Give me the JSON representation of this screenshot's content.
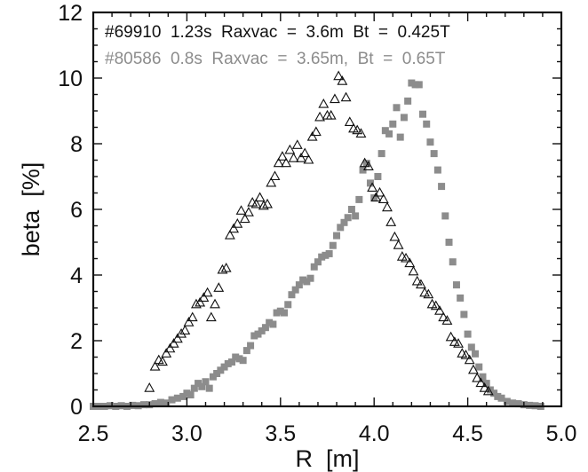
{
  "chart_data": {
    "type": "scatter",
    "xlabel": "R  [m]",
    "ylabel": "beta  [%]",
    "xlim": [
      2.5,
      5.0
    ],
    "ylim": [
      0,
      12
    ],
    "x_ticks": [
      "2.5",
      "3.0",
      "3.5",
      "4.0",
      "4.5",
      "5.0"
    ],
    "y_ticks": [
      "0",
      "2",
      "4",
      "6",
      "8",
      "10",
      "12"
    ],
    "grid": false,
    "legend_position": "top",
    "series": [
      {
        "name": "#69910  1.23s  Raxvac  =  3.6m  Bt  =  0.425T",
        "marker": "open-triangle",
        "color": "#111111",
        "points": [
          [
            2.8,
            0.55
          ],
          [
            2.83,
            1.2
          ],
          [
            2.85,
            1.4
          ],
          [
            2.87,
            1.35
          ],
          [
            2.89,
            1.6
          ],
          [
            2.91,
            1.75
          ],
          [
            2.93,
            1.9
          ],
          [
            2.95,
            2.05
          ],
          [
            2.97,
            2.2
          ],
          [
            2.99,
            2.3
          ],
          [
            3.01,
            2.55
          ],
          [
            3.03,
            2.7
          ],
          [
            3.05,
            3.1
          ],
          [
            3.07,
            3.15
          ],
          [
            3.09,
            3.3
          ],
          [
            3.11,
            3.45
          ],
          [
            3.13,
            2.7
          ],
          [
            3.15,
            3.1
          ],
          [
            3.17,
            3.6
          ],
          [
            3.19,
            4.15
          ],
          [
            3.21,
            4.2
          ],
          [
            3.23,
            5.2
          ],
          [
            3.25,
            5.4
          ],
          [
            3.27,
            5.55
          ],
          [
            3.29,
            5.95
          ],
          [
            3.31,
            5.7
          ],
          [
            3.33,
            5.9
          ],
          [
            3.35,
            6.2
          ],
          [
            3.37,
            6.15
          ],
          [
            3.39,
            6.35
          ],
          [
            3.41,
            6.1
          ],
          [
            3.43,
            6.15
          ],
          [
            3.45,
            6.8
          ],
          [
            3.47,
            7.0
          ],
          [
            3.49,
            7.4
          ],
          [
            3.51,
            7.6
          ],
          [
            3.53,
            7.4
          ],
          [
            3.55,
            7.8
          ],
          [
            3.57,
            7.55
          ],
          [
            3.59,
            7.95
          ],
          [
            3.61,
            7.55
          ],
          [
            3.63,
            7.7
          ],
          [
            3.65,
            7.5
          ],
          [
            3.67,
            8.2
          ],
          [
            3.69,
            8.35
          ],
          [
            3.71,
            8.8
          ],
          [
            3.73,
            9.2
          ],
          [
            3.75,
            8.85
          ],
          [
            3.77,
            8.85
          ],
          [
            3.79,
            9.35
          ],
          [
            3.81,
            10.05
          ],
          [
            3.83,
            9.9
          ],
          [
            3.85,
            9.4
          ],
          [
            3.87,
            8.65
          ],
          [
            3.89,
            8.45
          ],
          [
            3.91,
            8.4
          ],
          [
            3.93,
            8.3
          ],
          [
            3.95,
            7.4
          ],
          [
            3.97,
            7.3
          ],
          [
            3.99,
            6.65
          ],
          [
            4.01,
            6.35
          ],
          [
            4.03,
            6.5
          ],
          [
            4.05,
            6.3
          ],
          [
            4.07,
            6.05
          ],
          [
            4.09,
            5.6
          ],
          [
            4.11,
            5.15
          ],
          [
            4.13,
            4.9
          ],
          [
            4.15,
            4.55
          ],
          [
            4.17,
            4.5
          ],
          [
            4.19,
            4.35
          ],
          [
            4.21,
            4.1
          ],
          [
            4.23,
            3.8
          ],
          [
            4.25,
            3.7
          ],
          [
            4.27,
            3.45
          ],
          [
            4.29,
            3.4
          ],
          [
            4.31,
            3.1
          ],
          [
            4.33,
            3.05
          ],
          [
            4.35,
            2.9
          ],
          [
            4.37,
            2.7
          ],
          [
            4.39,
            2.6
          ],
          [
            4.41,
            2.1
          ],
          [
            4.43,
            1.95
          ],
          [
            4.45,
            1.9
          ],
          [
            4.47,
            1.6
          ],
          [
            4.49,
            1.55
          ],
          [
            4.51,
            1.4
          ],
          [
            4.53,
            1.1
          ],
          [
            4.55,
            0.85
          ],
          [
            4.57,
            0.7
          ],
          [
            4.59,
            0.55
          ],
          [
            4.61,
            0.45
          ]
        ]
      },
      {
        "name": "#80586  0.8s  Raxvac  =  3.65m,  Bt  =  0.65T",
        "marker": "filled-square",
        "color": "#8c8c8c",
        "points": [
          [
            2.5,
            0.0
          ],
          [
            2.53,
            0.0
          ],
          [
            2.56,
            0.0
          ],
          [
            2.59,
            0.02
          ],
          [
            2.62,
            0.0
          ],
          [
            2.65,
            0.02
          ],
          [
            2.68,
            0.0
          ],
          [
            2.71,
            0.03
          ],
          [
            2.74,
            0.02
          ],
          [
            2.77,
            0.05
          ],
          [
            2.8,
            0.05
          ],
          [
            2.83,
            0.08
          ],
          [
            2.86,
            0.12
          ],
          [
            2.89,
            0.1
          ],
          [
            2.92,
            0.2
          ],
          [
            2.95,
            0.25
          ],
          [
            2.98,
            0.3
          ],
          [
            3.0,
            0.4
          ],
          [
            3.02,
            0.35
          ],
          [
            3.04,
            0.55
          ],
          [
            3.06,
            0.7
          ],
          [
            3.08,
            0.6
          ],
          [
            3.1,
            0.75
          ],
          [
            3.12,
            0.55
          ],
          [
            3.14,
            0.9
          ],
          [
            3.16,
            1.0
          ],
          [
            3.18,
            1.1
          ],
          [
            3.2,
            1.2
          ],
          [
            3.22,
            1.3
          ],
          [
            3.24,
            1.35
          ],
          [
            3.26,
            1.5
          ],
          [
            3.28,
            1.45
          ],
          [
            3.3,
            1.4
          ],
          [
            3.32,
            1.7
          ],
          [
            3.34,
            1.85
          ],
          [
            3.36,
            2.15
          ],
          [
            3.38,
            2.2
          ],
          [
            3.4,
            2.3
          ],
          [
            3.42,
            2.4
          ],
          [
            3.44,
            2.55
          ],
          [
            3.46,
            2.5
          ],
          [
            3.48,
            2.85
          ],
          [
            3.5,
            2.9
          ],
          [
            3.52,
            2.85
          ],
          [
            3.54,
            3.1
          ],
          [
            3.56,
            3.4
          ],
          [
            3.58,
            3.55
          ],
          [
            3.6,
            3.7
          ],
          [
            3.62,
            3.85
          ],
          [
            3.64,
            3.8
          ],
          [
            3.66,
            3.9
          ],
          [
            3.68,
            4.25
          ],
          [
            3.7,
            4.4
          ],
          [
            3.72,
            4.55
          ],
          [
            3.74,
            4.6
          ],
          [
            3.76,
            4.65
          ],
          [
            3.78,
            4.9
          ],
          [
            3.8,
            5.2
          ],
          [
            3.82,
            5.45
          ],
          [
            3.84,
            5.6
          ],
          [
            3.86,
            5.75
          ],
          [
            3.88,
            6.0
          ],
          [
            3.9,
            5.8
          ],
          [
            3.92,
            6.3
          ],
          [
            3.94,
            7.2
          ],
          [
            3.96,
            7.4
          ],
          [
            3.98,
            6.8
          ],
          [
            4.0,
            6.35
          ],
          [
            4.02,
            7.0
          ],
          [
            4.04,
            7.7
          ],
          [
            4.06,
            8.4
          ],
          [
            4.08,
            8.3
          ],
          [
            4.1,
            8.6
          ],
          [
            4.12,
            9.1
          ],
          [
            4.14,
            8.2
          ],
          [
            4.16,
            8.8
          ],
          [
            4.18,
            9.3
          ],
          [
            4.2,
            9.85
          ],
          [
            4.22,
            9.8
          ],
          [
            4.24,
            9.8
          ],
          [
            4.26,
            8.9
          ],
          [
            4.28,
            8.6
          ],
          [
            4.3,
            8.05
          ],
          [
            4.32,
            7.7
          ],
          [
            4.34,
            7.2
          ],
          [
            4.36,
            6.7
          ],
          [
            4.38,
            5.8
          ],
          [
            4.4,
            5.0
          ],
          [
            4.42,
            4.4
          ],
          [
            4.44,
            3.7
          ],
          [
            4.46,
            3.3
          ],
          [
            4.48,
            2.8
          ],
          [
            4.5,
            2.2
          ],
          [
            4.52,
            1.8
          ],
          [
            4.54,
            1.6
          ],
          [
            4.56,
            1.2
          ],
          [
            4.58,
            0.9
          ],
          [
            4.6,
            0.7
          ],
          [
            4.62,
            0.5
          ],
          [
            4.64,
            0.4
          ],
          [
            4.66,
            0.3
          ],
          [
            4.68,
            0.25
          ],
          [
            4.71,
            0.15
          ],
          [
            4.74,
            0.1
          ],
          [
            4.77,
            0.08
          ],
          [
            4.8,
            0.05
          ],
          [
            4.83,
            0.03
          ],
          [
            4.86,
            0.02
          ],
          [
            4.89,
            0.0
          ]
        ]
      }
    ]
  }
}
